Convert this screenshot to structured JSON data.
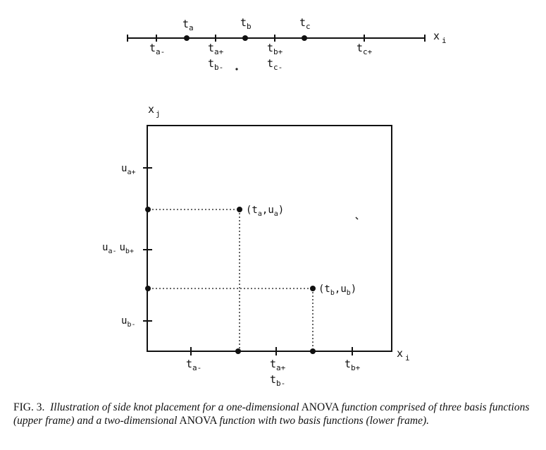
{
  "figure": {
    "upper": {
      "axis_label": "x",
      "axis_sub": "i",
      "knots_above": [
        {
          "base": "t",
          "sub": "a"
        },
        {
          "base": "t",
          "sub": "b"
        },
        {
          "base": "t",
          "sub": "c"
        }
      ],
      "knots_below": [
        {
          "lines": [
            {
              "base": "t",
              "sub": "a-"
            }
          ]
        },
        {
          "lines": [
            {
              "base": "t",
              "sub": "a+"
            },
            {
              "base": "t",
              "sub": "b-"
            }
          ]
        },
        {
          "lines": [
            {
              "base": "t",
              "sub": "b+"
            },
            {
              "base": "t",
              "sub": "c-"
            }
          ]
        },
        {
          "lines": [
            {
              "base": "t",
              "sub": "c+"
            }
          ]
        }
      ]
    },
    "lower": {
      "x_axis_label": "x",
      "x_axis_sub": "i",
      "y_axis_label": "x",
      "y_axis_sub": "j",
      "x_ticks": [
        {
          "lines": [
            {
              "base": "t",
              "sub": "a-"
            }
          ]
        },
        {
          "lines": [
            {
              "base": "t",
              "sub": "a+"
            },
            {
              "base": "t",
              "sub": "b-"
            }
          ]
        },
        {
          "lines": [
            {
              "base": "t",
              "sub": "b+"
            }
          ]
        }
      ],
      "y_ticks": [
        {
          "base": "u",
          "sub": "a+"
        },
        {
          "base": "u",
          "sub": "a-",
          "base2": "u",
          "sub2": "b+"
        },
        {
          "base": "u",
          "sub": "b-"
        }
      ],
      "points": [
        {
          "label": "(t",
          "sub1": "a",
          "mid": ",u",
          "sub2": "a",
          "end": ")"
        },
        {
          "label": "(t",
          "sub1": "b",
          "mid": ",u",
          "sub2": "b",
          "end": ")"
        }
      ]
    }
  },
  "caption": {
    "label": "FIG. 3.",
    "part1": "Illustration of side knot placement for a one-dimensional",
    "anova1": "ANOVA",
    "part2": "function comprised of three basis functions (upper frame) and a two-dimensional",
    "anova2": "ANOVA",
    "part3": "function with two basis functions (lower frame)."
  }
}
